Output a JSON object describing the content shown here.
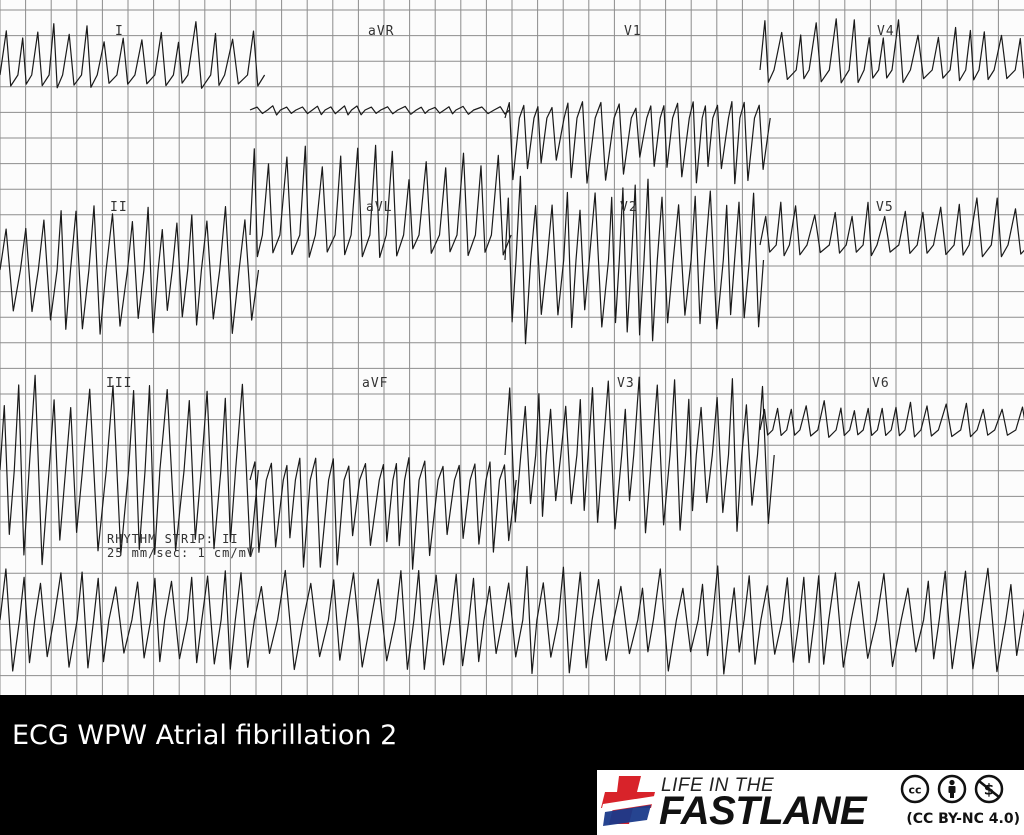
{
  "ecg": {
    "lead_labels": {
      "I": "I",
      "aVR": "aVR",
      "V1": "V1",
      "V4": "V4",
      "II": "II",
      "aVL": "aVL",
      "V2": "V2",
      "V5": "V5",
      "III": "III",
      "aVF": "aVF",
      "V3": "V3",
      "V6": "V6"
    },
    "rhythm_strip_line": "RHYTHM STRIP: II",
    "speed_line": "25 mm/sec: 1 cm/mV"
  },
  "caption": "ECG WPW Atrial fibrillation 2",
  "logo": {
    "line1": "LIFE IN THE",
    "line2": "FASTLANE",
    "license": "(CC BY-NC 4.0)",
    "icons": [
      "cc-icon",
      "attribution-icon",
      "noncommercial-icon"
    ]
  }
}
